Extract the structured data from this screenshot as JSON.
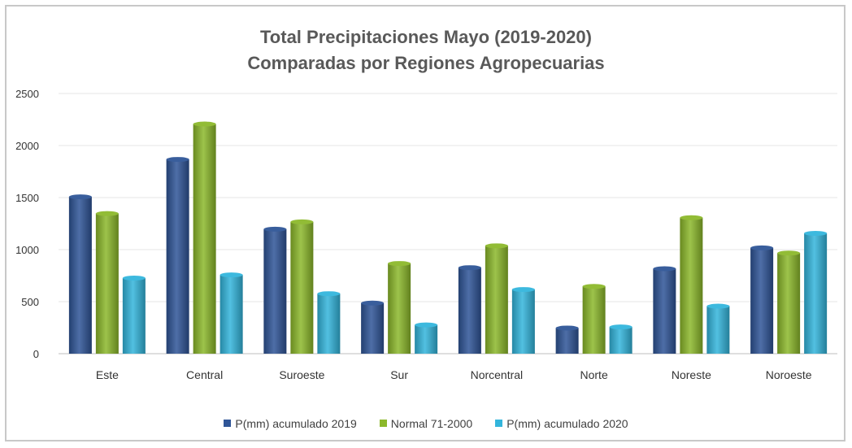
{
  "chart_data": {
    "type": "bar",
    "title": "Total Precipitaciones Mayo (2019-2020)",
    "subtitle": "Comparadas por Regiones Agropecuarias",
    "xlabel": "",
    "ylabel": "",
    "ylim": [
      0,
      2500
    ],
    "yticks": [
      0,
      500,
      1000,
      1500,
      2000,
      2500
    ],
    "categories": [
      "Este",
      "Central",
      "Suroeste",
      "Sur",
      "Norcentral",
      "Norte",
      "Noreste",
      "Noroeste"
    ],
    "series": [
      {
        "name": "P(mm) acumulado 2019",
        "color": "#2f5597",
        "values": [
          1530,
          1890,
          1220,
          510,
          850,
          270,
          840,
          1040
        ]
      },
      {
        "name": "Normal 71-2000",
        "color": "#8cb82b",
        "values": [
          1370,
          2230,
          1290,
          890,
          1060,
          670,
          1330,
          990
        ]
      },
      {
        "name": "P(mm) acumulado 2020",
        "color": "#33b5dc",
        "values": [
          750,
          780,
          600,
          300,
          640,
          280,
          480,
          1180
        ]
      }
    ],
    "grid": true,
    "legend_position": "bottom"
  }
}
